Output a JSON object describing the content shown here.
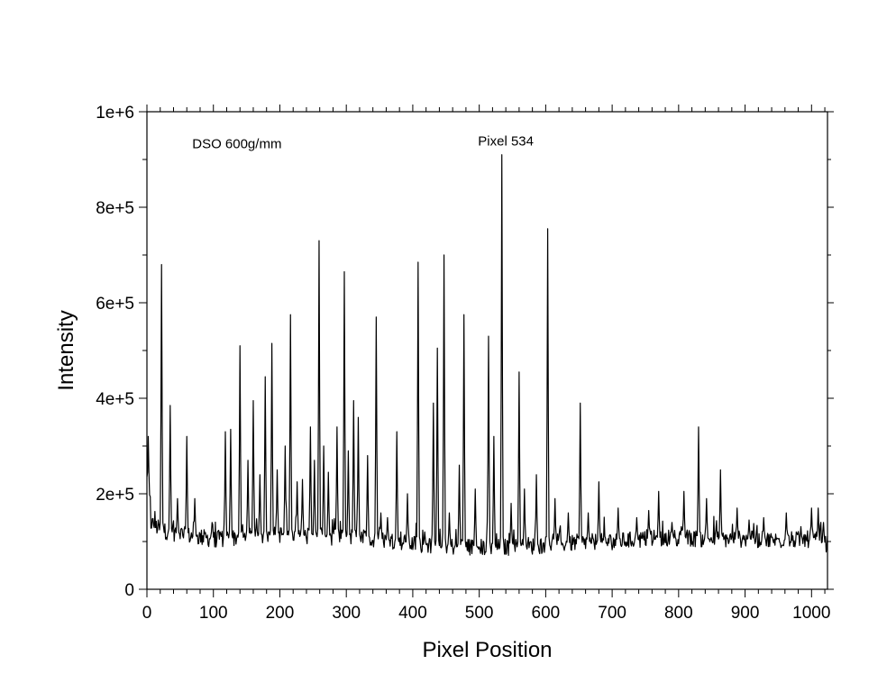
{
  "chart_data": {
    "type": "line",
    "title": "",
    "xlabel": "Pixel Position",
    "ylabel": "Intensity",
    "xlim": [
      0,
      1024
    ],
    "ylim": [
      0,
      1000000
    ],
    "xticks": [
      0,
      100,
      200,
      300,
      400,
      500,
      600,
      700,
      800,
      900,
      1000
    ],
    "xtick_labels": [
      "0",
      "100",
      "200",
      "300",
      "400",
      "500",
      "600",
      "700",
      "800",
      "900",
      "1000"
    ],
    "yticks": [
      0,
      200000,
      400000,
      600000,
      800000,
      1000000
    ],
    "ytick_labels": [
      "0",
      "2e+5",
      "4e+5",
      "6e+5",
      "8e+5",
      "1e+6"
    ],
    "grid": false,
    "legend": "none",
    "line_color": "#000000",
    "annotations": [
      {
        "text": "DSO 600g/mm",
        "x": 60,
        "y": 935000
      },
      {
        "text": "Pixel 534",
        "x": 540,
        "y": 937000
      }
    ],
    "series": [
      {
        "baseline": [
          [
            0,
            230000
          ],
          [
            5,
            140000
          ],
          [
            20,
            125000
          ],
          [
            50,
            115000
          ],
          [
            100,
            105000
          ],
          [
            150,
            110000
          ],
          [
            200,
            115000
          ],
          [
            250,
            110000
          ],
          [
            300,
            110000
          ],
          [
            350,
            105000
          ],
          [
            400,
            95000
          ],
          [
            450,
            90000
          ],
          [
            500,
            88000
          ],
          [
            550,
            88000
          ],
          [
            600,
            92000
          ],
          [
            650,
            98000
          ],
          [
            700,
            100000
          ],
          [
            750,
            105000
          ],
          [
            800,
            108000
          ],
          [
            850,
            105000
          ],
          [
            900,
            105000
          ],
          [
            950,
            102000
          ],
          [
            1000,
            105000
          ],
          [
            1024,
            95000
          ]
        ],
        "peaks": [
          [
            2,
            320000
          ],
          [
            22,
            680000
          ],
          [
            35,
            385000
          ],
          [
            46,
            190000
          ],
          [
            60,
            320000
          ],
          [
            72,
            190000
          ],
          [
            98,
            140000
          ],
          [
            118,
            330000
          ],
          [
            126,
            335000
          ],
          [
            140,
            510000
          ],
          [
            152,
            270000
          ],
          [
            160,
            395000
          ],
          [
            170,
            240000
          ],
          [
            178,
            445000
          ],
          [
            188,
            515000
          ],
          [
            196,
            250000
          ],
          [
            208,
            300000
          ],
          [
            216,
            575000
          ],
          [
            226,
            225000
          ],
          [
            234,
            230000
          ],
          [
            246,
            340000
          ],
          [
            252,
            270000
          ],
          [
            259,
            730000
          ],
          [
            266,
            300000
          ],
          [
            273,
            245000
          ],
          [
            286,
            340000
          ],
          [
            297,
            665000
          ],
          [
            303,
            290000
          ],
          [
            311,
            395000
          ],
          [
            318,
            360000
          ],
          [
            332,
            280000
          ],
          [
            345,
            570000
          ],
          [
            352,
            160000
          ],
          [
            362,
            150000
          ],
          [
            376,
            330000
          ],
          [
            392,
            200000
          ],
          [
            408,
            685000
          ],
          [
            418,
            120000
          ],
          [
            431,
            390000
          ],
          [
            437,
            505000
          ],
          [
            447,
            700000
          ],
          [
            455,
            160000
          ],
          [
            470,
            260000
          ],
          [
            477,
            575000
          ],
          [
            494,
            210000
          ],
          [
            514,
            530000
          ],
          [
            522,
            320000
          ],
          [
            534,
            910000
          ],
          [
            548,
            180000
          ],
          [
            560,
            455000
          ],
          [
            568,
            210000
          ],
          [
            586,
            240000
          ],
          [
            603,
            755000
          ],
          [
            614,
            190000
          ],
          [
            634,
            160000
          ],
          [
            652,
            390000
          ],
          [
            664,
            160000
          ],
          [
            680,
            225000
          ],
          [
            709,
            170000
          ],
          [
            737,
            150000
          ],
          [
            755,
            165000
          ],
          [
            770,
            205000
          ],
          [
            790,
            140000
          ],
          [
            808,
            205000
          ],
          [
            830,
            340000
          ],
          [
            842,
            190000
          ],
          [
            863,
            250000
          ],
          [
            888,
            170000
          ],
          [
            906,
            145000
          ],
          [
            928,
            150000
          ],
          [
            962,
            160000
          ],
          [
            1000,
            170000
          ],
          [
            1010,
            170000
          ],
          [
            1018,
            140000
          ]
        ]
      }
    ]
  }
}
